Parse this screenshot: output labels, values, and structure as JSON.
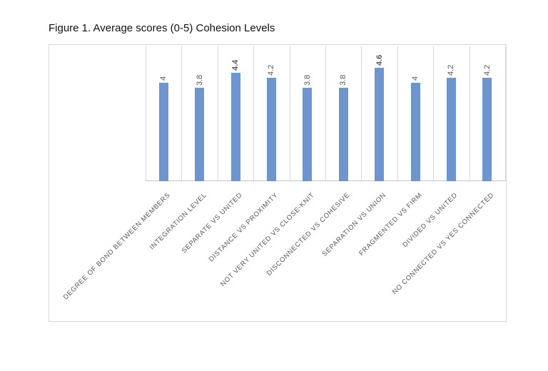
{
  "figure": {
    "title": "Figure 1. Average scores (0-5) Cohesion Levels"
  },
  "chart_data": {
    "type": "bar",
    "title": "Figure 1. Average scores (0-5) Cohesion Levels",
    "categories": [
      "DEGREE OF BOND BETWEEN MEMBERS",
      "INTEGRATION LEVEL",
      "SEPARATE VS UNITED",
      "DISTANCE VS PROXIMITY",
      "NOT VERY UNITED VS CLOSE-KNIT",
      "DISCONNECTED VS COHESIVE",
      "SEPARATION VS UNION",
      "FRAGMENTED VS FIRM",
      "DIVIDED VS UNITED",
      "NO CONNECTED VS YES CONNECTED"
    ],
    "values": [
      4,
      3.8,
      4.4,
      4.2,
      3.8,
      3.8,
      4.6,
      4,
      4.2,
      4.2
    ],
    "value_labels": [
      "4",
      "3.8",
      "4.4",
      "4.2",
      "3.8",
      "3.8",
      "4.6",
      "4",
      "4.2",
      "4.2"
    ],
    "value_label_bold": [
      false,
      false,
      true,
      false,
      false,
      false,
      true,
      false,
      false,
      false
    ],
    "xlabel": "",
    "ylabel": "",
    "ylim": [
      0,
      5
    ],
    "grid": "vertical category separator lines, no horizontal gridlines, no value axis labels",
    "legend": "none",
    "data_label_rotation_deg": 90,
    "category_label_rotation_deg": 45,
    "colors": {
      "bar": "#6e96cd",
      "gridline": "#d9d9d9",
      "axis_line": "#c6c6c6",
      "chart_border": "#d9d9d9",
      "data_label": "#595959",
      "category_label": "#595959",
      "title": "#111111"
    }
  }
}
